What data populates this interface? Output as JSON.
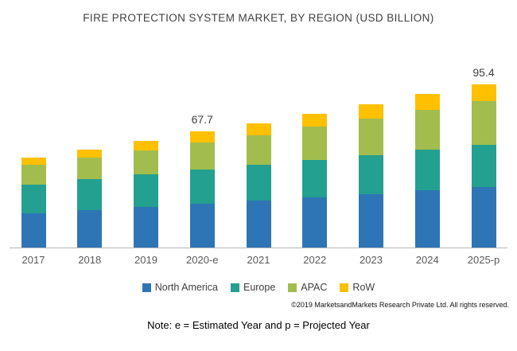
{
  "chart_data": {
    "type": "bar",
    "stacked": true,
    "title": "FIRE PROTECTION SYSTEM  MARKET, BY REGION (USD BILLION)",
    "categories": [
      "2017",
      "2018",
      "2019",
      "2020-e",
      "2021",
      "2022",
      "2023",
      "2024",
      "2025-p"
    ],
    "series": [
      {
        "name": "North America",
        "color": "#2e75b6",
        "values": [
          20.0,
          21.8,
          23.7,
          25.7,
          27.5,
          29.5,
          31.4,
          33.5,
          35.5
        ]
      },
      {
        "name": "Europe",
        "color": "#23a08f",
        "values": [
          17.0,
          18.0,
          19.0,
          20.0,
          20.9,
          21.8,
          22.7,
          23.6,
          24.5
        ]
      },
      {
        "name": "APAC",
        "color": "#a2bd4e",
        "values": [
          11.5,
          12.7,
          14.1,
          15.7,
          17.3,
          19.2,
          21.2,
          23.4,
          25.4
        ]
      },
      {
        "name": "RoW",
        "color": "#ffc000",
        "values": [
          4.2,
          4.9,
          5.5,
          6.3,
          7.0,
          7.8,
          8.6,
          9.5,
          10.0
        ]
      }
    ],
    "annotations": {
      "2020-e": "67.7",
      "2025-p": "95.4"
    },
    "totals": [
      52.7,
      57.4,
      62.3,
      67.7,
      72.7,
      78.3,
      83.9,
      90.0,
      95.4
    ],
    "ylim": [
      0,
      100
    ],
    "grid": false,
    "legend_position": "bottom",
    "xlabel": "",
    "ylabel": ""
  },
  "footer": {
    "copyright": "©2019 MarketsandMarkets  Research Private Ltd. All rights reserved.",
    "note": "Note: e = Estimated Year and p = Projected Year"
  }
}
